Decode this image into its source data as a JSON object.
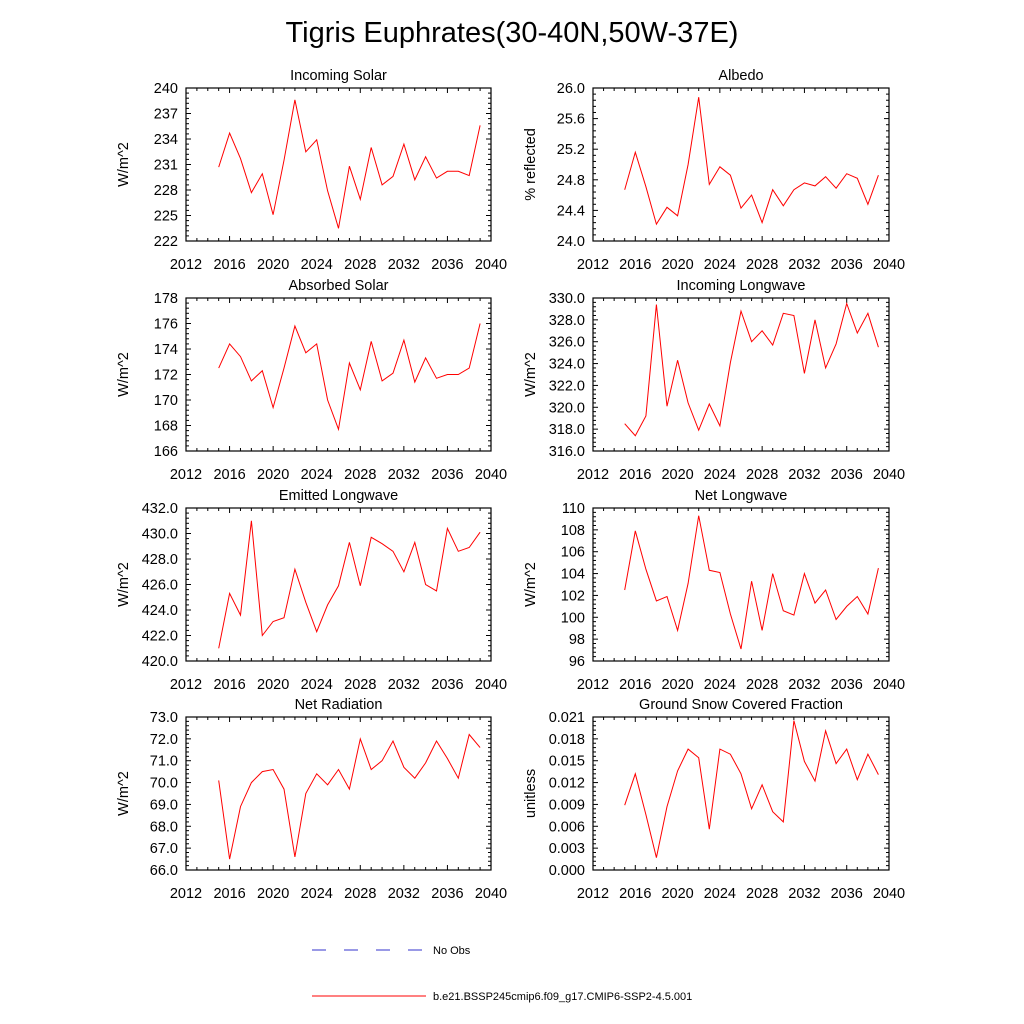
{
  "title": "Tigris Euphrates(30-40N,50W-37E)",
  "legend": [
    {
      "label": "No Obs",
      "color": "#3333cc",
      "dash": true
    },
    {
      "label": "b.e21.BSSP245cmip6.f09_g17.CMIP6-SSP2-4.5.001",
      "color": "#ff0000",
      "dash": false
    }
  ],
  "chart_data": [
    {
      "type": "line",
      "title": "Incoming Solar",
      "ylabel": "W/m^2",
      "xlim": [
        2012,
        2040
      ],
      "xticks": [
        "2012",
        "2016",
        "2020",
        "2024",
        "2028",
        "2032",
        "2036",
        "2040"
      ],
      "ylim": [
        222,
        240
      ],
      "yticks": [
        "222",
        "225",
        "228",
        "231",
        "234",
        "237",
        "240"
      ],
      "series": [
        {
          "color": "#ff0000",
          "x": [
            2015,
            2016,
            2017,
            2018,
            2019,
            2020,
            2021,
            2022,
            2023,
            2024,
            2025,
            2026,
            2027,
            2028,
            2029,
            2030,
            2031,
            2032,
            2033,
            2034,
            2035,
            2036,
            2037,
            2038,
            2039
          ],
          "values": [
            230.7,
            234.7,
            231.7,
            227.7,
            229.9,
            225.1,
            231.5,
            238.6,
            232.5,
            233.9,
            227.9,
            223.5,
            230.8,
            226.9,
            233.0,
            228.6,
            229.6,
            233.4,
            229.2,
            231.9,
            229.4,
            230.2,
            230.2,
            229.7,
            235.6
          ]
        }
      ]
    },
    {
      "type": "line",
      "title": "Albedo",
      "ylabel": "% reflected",
      "xlim": [
        2012,
        2040
      ],
      "xticks": [
        "2012",
        "2016",
        "2020",
        "2024",
        "2028",
        "2032",
        "2036",
        "2040"
      ],
      "ylim": [
        24.0,
        26.0
      ],
      "yticks": [
        "24.0",
        "24.4",
        "24.8",
        "25.2",
        "25.6",
        "26.0"
      ],
      "series": [
        {
          "color": "#ff0000",
          "x": [
            2015,
            2016,
            2017,
            2018,
            2019,
            2020,
            2021,
            2022,
            2023,
            2024,
            2025,
            2026,
            2027,
            2028,
            2029,
            2030,
            2031,
            2032,
            2033,
            2034,
            2035,
            2036,
            2037,
            2038,
            2039
          ],
          "values": [
            24.67,
            25.16,
            24.71,
            24.22,
            24.44,
            24.33,
            25.0,
            25.88,
            24.74,
            24.97,
            24.86,
            24.43,
            24.6,
            24.24,
            24.67,
            24.46,
            24.67,
            24.76,
            24.72,
            24.84,
            24.69,
            24.88,
            24.82,
            24.48,
            24.86
          ]
        }
      ]
    },
    {
      "type": "line",
      "title": "Absorbed Solar",
      "ylabel": "W/m^2",
      "xlim": [
        2012,
        2040
      ],
      "xticks": [
        "2012",
        "2016",
        "2020",
        "2024",
        "2028",
        "2032",
        "2036",
        "2040"
      ],
      "ylim": [
        166,
        178
      ],
      "yticks": [
        "166",
        "168",
        "170",
        "172",
        "174",
        "176",
        "178"
      ],
      "series": [
        {
          "color": "#ff0000",
          "x": [
            2015,
            2016,
            2017,
            2018,
            2019,
            2020,
            2021,
            2022,
            2023,
            2024,
            2025,
            2026,
            2027,
            2028,
            2029,
            2030,
            2031,
            2032,
            2033,
            2034,
            2035,
            2036,
            2037,
            2038,
            2039
          ],
          "values": [
            172.5,
            174.4,
            173.4,
            171.5,
            172.3,
            169.4,
            172.5,
            175.8,
            173.7,
            174.4,
            170.0,
            167.7,
            172.9,
            170.8,
            174.6,
            171.5,
            172.1,
            174.7,
            171.4,
            173.3,
            171.7,
            172.0,
            172.0,
            172.5,
            176.0
          ]
        }
      ]
    },
    {
      "type": "line",
      "title": "Incoming Longwave",
      "ylabel": "W/m^2",
      "xlim": [
        2012,
        2040
      ],
      "xticks": [
        "2012",
        "2016",
        "2020",
        "2024",
        "2028",
        "2032",
        "2036",
        "2040"
      ],
      "ylim": [
        316.0,
        330.0
      ],
      "yticks": [
        "316.0",
        "318.0",
        "320.0",
        "322.0",
        "324.0",
        "326.0",
        "328.0",
        "330.0"
      ],
      "series": [
        {
          "color": "#ff0000",
          "x": [
            2015,
            2016,
            2017,
            2018,
            2019,
            2020,
            2021,
            2022,
            2023,
            2024,
            2025,
            2026,
            2027,
            2028,
            2029,
            2030,
            2031,
            2032,
            2033,
            2034,
            2035,
            2036,
            2037,
            2038,
            2039
          ],
          "values": [
            318.5,
            317.4,
            319.2,
            329.4,
            320.1,
            324.3,
            320.4,
            317.9,
            320.3,
            318.3,
            324.1,
            328.8,
            326.0,
            327.0,
            325.7,
            328.6,
            328.4,
            323.1,
            328.0,
            323.6,
            325.8,
            329.5,
            326.8,
            328.6,
            325.5
          ]
        }
      ]
    },
    {
      "type": "line",
      "title": "Emitted Longwave",
      "ylabel": "W/m^2",
      "xlim": [
        2012,
        2040
      ],
      "xticks": [
        "2012",
        "2016",
        "2020",
        "2024",
        "2028",
        "2032",
        "2036",
        "2040"
      ],
      "ylim": [
        420.0,
        432.0
      ],
      "yticks": [
        "420.0",
        "422.0",
        "424.0",
        "426.0",
        "428.0",
        "430.0",
        "432.0"
      ],
      "series": [
        {
          "color": "#ff0000",
          "x": [
            2015,
            2016,
            2017,
            2018,
            2019,
            2020,
            2021,
            2022,
            2023,
            2024,
            2025,
            2026,
            2027,
            2028,
            2029,
            2030,
            2031,
            2032,
            2033,
            2034,
            2035,
            2036,
            2037,
            2038,
            2039
          ],
          "values": [
            421.0,
            425.3,
            423.6,
            431.0,
            422.0,
            423.1,
            423.4,
            427.2,
            424.6,
            422.3,
            424.4,
            425.9,
            429.3,
            425.9,
            429.7,
            429.2,
            428.6,
            427.0,
            429.3,
            426.0,
            425.5,
            430.4,
            428.6,
            428.9,
            430.1
          ]
        }
      ]
    },
    {
      "type": "line",
      "title": "Net Longwave",
      "ylabel": "W/m^2",
      "xlim": [
        2012,
        2040
      ],
      "xticks": [
        "2012",
        "2016",
        "2020",
        "2024",
        "2028",
        "2032",
        "2036",
        "2040"
      ],
      "ylim": [
        96,
        110
      ],
      "yticks": [
        "96",
        "98",
        "100",
        "102",
        "104",
        "106",
        "108",
        "110"
      ],
      "series": [
        {
          "color": "#ff0000",
          "x": [
            2015,
            2016,
            2017,
            2018,
            2019,
            2020,
            2021,
            2022,
            2023,
            2024,
            2025,
            2026,
            2027,
            2028,
            2029,
            2030,
            2031,
            2032,
            2033,
            2034,
            2035,
            2036,
            2037,
            2038,
            2039
          ],
          "values": [
            102.5,
            107.9,
            104.4,
            101.5,
            101.9,
            98.8,
            103.1,
            109.3,
            104.3,
            104.1,
            100.3,
            97.1,
            103.3,
            98.8,
            104.0,
            100.6,
            100.2,
            104.0,
            101.3,
            102.5,
            99.8,
            101.0,
            101.9,
            100.3,
            104.5
          ]
        }
      ]
    },
    {
      "type": "line",
      "title": "Net Radiation",
      "ylabel": "W/m^2",
      "xlim": [
        2012,
        2040
      ],
      "xticks": [
        "2012",
        "2016",
        "2020",
        "2024",
        "2028",
        "2032",
        "2036",
        "2040"
      ],
      "ylim": [
        66.0,
        73.0
      ],
      "yticks": [
        "66.0",
        "67.0",
        "68.0",
        "69.0",
        "70.0",
        "71.0",
        "72.0",
        "73.0"
      ],
      "series": [
        {
          "color": "#ff0000",
          "x": [
            2015,
            2016,
            2017,
            2018,
            2019,
            2020,
            2021,
            2022,
            2023,
            2024,
            2025,
            2026,
            2027,
            2028,
            2029,
            2030,
            2031,
            2032,
            2033,
            2034,
            2035,
            2036,
            2037,
            2038,
            2039
          ],
          "values": [
            70.1,
            66.5,
            68.9,
            70.0,
            70.5,
            70.6,
            69.7,
            66.6,
            69.5,
            70.4,
            69.9,
            70.6,
            69.7,
            72.0,
            70.6,
            71.0,
            71.9,
            70.7,
            70.2,
            70.9,
            71.9,
            71.1,
            70.2,
            72.2,
            71.6
          ]
        }
      ]
    },
    {
      "type": "line",
      "title": "Ground Snow Covered Fraction",
      "ylabel": "unitless",
      "xlim": [
        2012,
        2040
      ],
      "xticks": [
        "2012",
        "2016",
        "2020",
        "2024",
        "2028",
        "2032",
        "2036",
        "2040"
      ],
      "ylim": [
        0.0,
        0.021
      ],
      "yticks": [
        "0.000",
        "0.003",
        "0.006",
        "0.009",
        "0.012",
        "0.015",
        "0.018",
        "0.021"
      ],
      "series": [
        {
          "color": "#ff0000",
          "x": [
            2015,
            2016,
            2017,
            2018,
            2019,
            2020,
            2021,
            2022,
            2023,
            2024,
            2025,
            2026,
            2027,
            2028,
            2029,
            2030,
            2031,
            2032,
            2033,
            2034,
            2035,
            2036,
            2037,
            2038,
            2039
          ],
          "values": [
            0.0089,
            0.0132,
            0.0076,
            0.0017,
            0.0087,
            0.0136,
            0.0166,
            0.0154,
            0.0056,
            0.0166,
            0.0159,
            0.0132,
            0.0084,
            0.0117,
            0.008,
            0.0066,
            0.0205,
            0.0149,
            0.0122,
            0.0191,
            0.0146,
            0.0166,
            0.0124,
            0.0159,
            0.0131
          ]
        }
      ]
    }
  ]
}
